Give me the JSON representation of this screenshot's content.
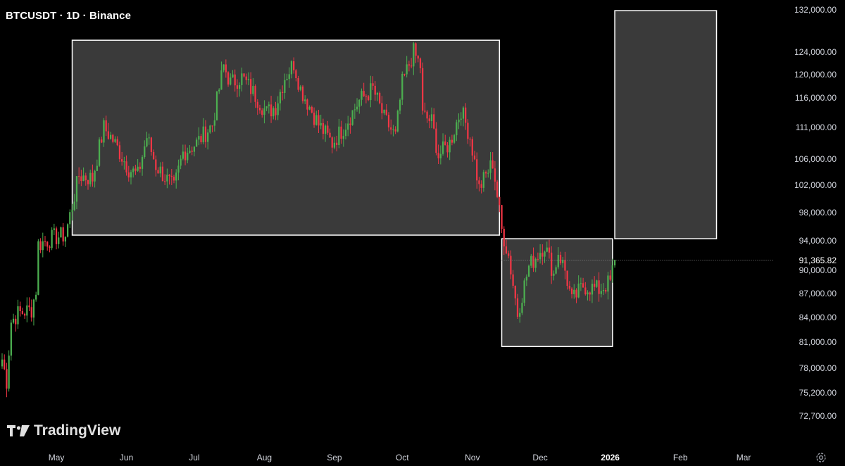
{
  "header": {
    "symbol_label": "BTCUSDT · 1D · Binance"
  },
  "branding": {
    "logo_text": "TradingView"
  },
  "price_axis": {
    "labels": [
      "132,000.00",
      "124,000.00",
      "120,000.00",
      "116,000.00",
      "111,000.00",
      "106,000.00",
      "102,000.00",
      "98,000.00",
      "94,000.00",
      "90,000.00",
      "87,000.00",
      "84,000.00",
      "81,000.00",
      "78,000.00",
      "75,200.00",
      "72,700.00"
    ],
    "current_price": "91,365.82"
  },
  "time_axis": {
    "labels": [
      "May",
      "Jun",
      "Jul",
      "Aug",
      "Sep",
      "Oct",
      "Nov",
      "Dec",
      "2026",
      "Feb",
      "Mar"
    ]
  },
  "colors": {
    "up": "#4caf50",
    "down": "#f23645",
    "background": "#000000",
    "box_fill": "#3a3a3a",
    "box_stroke": "#ffffff"
  },
  "chart_data": {
    "type": "candlestick",
    "title": "BTCUSDT · 1D · Binance",
    "y_scale": "log",
    "ylim": [
      71500,
      132500
    ],
    "xlim": [
      "2025-04-07",
      "2026-03-15"
    ],
    "rectangles": [
      {
        "x_start": "2025-05-08",
        "x_end": "2025-11-13",
        "y_low": 94800,
        "y_high": 126200
      },
      {
        "x_start": "2025-11-14",
        "x_end": "2026-01-02",
        "y_low": 80500,
        "y_high": 94300
      },
      {
        "x_start": "2026-01-03",
        "x_end": "2026-02-17",
        "y_low": 94300,
        "y_high": 131800
      }
    ],
    "current_price": 91365.82,
    "anchors": [
      [
        "2025-04-07",
        79000
      ],
      [
        "2025-04-09",
        76500
      ],
      [
        "2025-04-11",
        83500
      ],
      [
        "2025-04-14",
        84500
      ],
      [
        "2025-04-20",
        85000
      ],
      [
        "2025-04-22",
        87500
      ],
      [
        "2025-04-23",
        93500
      ],
      [
        "2025-04-30",
        94500
      ],
      [
        "2025-05-05",
        94800
      ],
      [
        "2025-05-08",
        99000
      ],
      [
        "2025-05-11",
        103500
      ],
      [
        "2025-05-17",
        103000
      ],
      [
        "2025-05-22",
        111000
      ],
      [
        "2025-05-26",
        109000
      ],
      [
        "2025-06-02",
        104500
      ],
      [
        "2025-06-06",
        103500
      ],
      [
        "2025-06-10",
        109500
      ],
      [
        "2025-06-14",
        105000
      ],
      [
        "2025-06-22",
        101500
      ],
      [
        "2025-06-26",
        107000
      ],
      [
        "2025-07-02",
        108500
      ],
      [
        "2025-07-09",
        111500
      ],
      [
        "2025-07-14",
        121500
      ],
      [
        "2025-07-17",
        118500
      ],
      [
        "2025-07-22",
        119500
      ],
      [
        "2025-07-26",
        117500
      ],
      [
        "2025-08-02",
        113500
      ],
      [
        "2025-08-06",
        114500
      ],
      [
        "2025-08-10",
        119500
      ],
      [
        "2025-08-14",
        122000
      ],
      [
        "2025-08-17",
        117500
      ],
      [
        "2025-08-25",
        111500
      ],
      [
        "2025-08-31",
        108500
      ],
      [
        "2025-09-05",
        111000
      ],
      [
        "2025-09-12",
        115500
      ],
      [
        "2025-09-18",
        117500
      ],
      [
        "2025-09-23",
        112500
      ],
      [
        "2025-09-28",
        109500
      ],
      [
        "2025-10-01",
        118500
      ],
      [
        "2025-10-06",
        124000
      ],
      [
        "2025-10-09",
        121500
      ],
      [
        "2025-10-10",
        113000
      ],
      [
        "2025-10-14",
        112000
      ],
      [
        "2025-10-17",
        106500
      ],
      [
        "2025-10-22",
        108500
      ],
      [
        "2025-10-27",
        114000
      ],
      [
        "2025-10-31",
        109500
      ],
      [
        "2025-11-04",
        101500
      ],
      [
        "2025-11-10",
        105500
      ],
      [
        "2025-11-14",
        95500
      ],
      [
        "2025-11-17",
        92000
      ],
      [
        "2025-11-21",
        84500
      ],
      [
        "2025-11-26",
        90500
      ],
      [
        "2025-12-03",
        93500
      ],
      [
        "2025-12-07",
        89500
      ],
      [
        "2025-12-09",
        92500
      ],
      [
        "2025-12-12",
        90000
      ],
      [
        "2025-12-15",
        86000
      ],
      [
        "2025-12-20",
        88000
      ],
      [
        "2025-12-27",
        87500
      ],
      [
        "2026-01-01",
        88500
      ],
      [
        "2026-01-03",
        91400
      ]
    ]
  }
}
